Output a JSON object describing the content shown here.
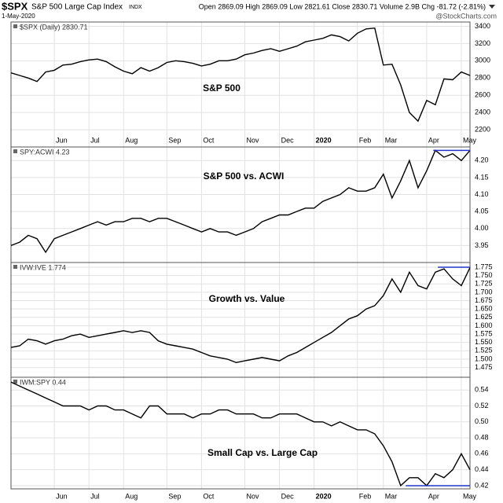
{
  "header": {
    "symbol": "$SPX",
    "name": "S&P 500 Large Cap Index",
    "exchange": "INDX",
    "date": "1-May-2020",
    "quote": "Open 2869.09  High 2869.09  Low 2821.61  Close 2830.71  Volume 2.9B  Chg -81.72 (-2.81%)",
    "credit": "@StockCharts.com"
  },
  "chart_data": [
    {
      "type": "line",
      "label": "$SPX (Daily) 2830.71",
      "title": "S&P 500",
      "color": "#000000",
      "grid": true,
      "categories": [
        null,
        null,
        null,
        null,
        null,
        "Jun",
        null,
        null,
        null,
        "Jul",
        null,
        null,
        null,
        "Aug",
        null,
        null,
        null,
        null,
        "Sep",
        null,
        null,
        null,
        "Oct",
        null,
        null,
        null,
        null,
        "Nov",
        null,
        null,
        null,
        "Dec",
        null,
        null,
        null,
        "2020",
        null,
        null,
        null,
        null,
        "Feb",
        null,
        null,
        "Mar",
        null,
        null,
        null,
        null,
        "Apr",
        null,
        null,
        null,
        "May",
        null
      ],
      "values": [
        2860,
        2830,
        2800,
        2760,
        2870,
        2890,
        2950,
        2960,
        2990,
        3010,
        3020,
        2990,
        2930,
        2880,
        2850,
        2920,
        2880,
        2920,
        2980,
        3000,
        2990,
        2970,
        2940,
        2960,
        3000,
        3000,
        3020,
        3070,
        3090,
        3120,
        3140,
        3110,
        3140,
        3170,
        3220,
        3240,
        3260,
        3300,
        3280,
        3230,
        3320,
        3370,
        3380,
        2950,
        2960,
        2720,
        2400,
        2300,
        2540,
        2490,
        2790,
        2780,
        2870,
        2830
      ],
      "ylim": [
        2000,
        3450
      ],
      "yticks": [
        2200,
        2400,
        2600,
        2800,
        3000,
        3200,
        3400
      ]
    },
    {
      "type": "line",
      "label": "SPY:ACWI 4.23",
      "title": "S&P 500 vs. ACWI",
      "color": "#000000",
      "grid": true,
      "values": [
        3.95,
        3.96,
        3.98,
        3.97,
        3.93,
        3.97,
        3.98,
        3.99,
        4.0,
        4.01,
        4.02,
        4.01,
        4.02,
        4.02,
        4.03,
        4.03,
        4.02,
        4.03,
        4.03,
        4.02,
        4.01,
        4.0,
        3.99,
        4.0,
        3.99,
        3.99,
        3.98,
        3.99,
        4.0,
        4.02,
        4.03,
        4.04,
        4.04,
        4.05,
        4.06,
        4.06,
        4.08,
        4.09,
        4.1,
        4.12,
        4.11,
        4.11,
        4.12,
        4.16,
        4.09,
        4.14,
        4.2,
        4.12,
        4.17,
        4.23,
        4.21,
        4.22,
        4.2,
        4.23
      ],
      "ylim": [
        3.9,
        4.24
      ],
      "yticks": [
        3.95,
        {
          "value": 4.0,
          "label": "4.00"
        },
        4.05,
        {
          "value": 4.1,
          "label": "4.10"
        },
        4.15,
        {
          "value": 4.2,
          "label": "4.20"
        }
      ],
      "hline": {
        "value": 4.23,
        "color": "#2233cc"
      }
    },
    {
      "type": "line",
      "label": "IVW:IVE 1.774",
      "title": "Growth vs. Value",
      "color": "#000000",
      "grid": true,
      "values": [
        1.535,
        1.54,
        1.56,
        1.555,
        1.545,
        1.555,
        1.56,
        1.57,
        1.575,
        1.565,
        1.57,
        1.575,
        1.58,
        1.585,
        1.58,
        1.585,
        1.58,
        1.555,
        1.545,
        1.54,
        1.535,
        1.53,
        1.52,
        1.51,
        1.505,
        1.5,
        1.49,
        1.495,
        1.5,
        1.505,
        1.5,
        1.495,
        1.51,
        1.52,
        1.535,
        1.55,
        1.565,
        1.58,
        1.6,
        1.62,
        1.63,
        1.65,
        1.66,
        1.69,
        1.74,
        1.7,
        1.76,
        1.72,
        1.71,
        1.76,
        1.77,
        1.74,
        1.72,
        1.774
      ],
      "ylim": [
        1.446,
        1.789
      ],
      "yticks": [
        1.475,
        {
          "value": 1.5,
          "label": "1.500"
        },
        1.525,
        {
          "value": 1.55,
          "label": "1.550"
        },
        1.575,
        {
          "value": 1.6,
          "label": "1.600"
        },
        1.625,
        {
          "value": 1.65,
          "label": "1.650"
        },
        1.675,
        {
          "value": 1.7,
          "label": "1.700"
        },
        1.725,
        {
          "value": 1.75,
          "label": "1.750"
        },
        1.775
      ],
      "hline": {
        "value": 1.775,
        "color": "#2233cc"
      }
    },
    {
      "type": "line",
      "label": "IWM:SPY 0.44",
      "title": "Small Cap vs. Large Cap",
      "color": "#000000",
      "grid": true,
      "categories": [
        null,
        null,
        null,
        null,
        null,
        "Jun",
        null,
        null,
        null,
        "Jul",
        null,
        null,
        null,
        "Aug",
        null,
        null,
        null,
        null,
        "Sep",
        null,
        null,
        null,
        "Oct",
        null,
        null,
        null,
        null,
        "Nov",
        null,
        null,
        null,
        "Dec",
        null,
        null,
        null,
        "2020",
        null,
        null,
        null,
        null,
        "Feb",
        null,
        null,
        "Mar",
        null,
        null,
        null,
        null,
        "Apr",
        null,
        null,
        null,
        "May",
        null
      ],
      "values": [
        0.55,
        0.545,
        0.54,
        0.535,
        0.53,
        0.525,
        0.52,
        0.52,
        0.52,
        0.515,
        0.52,
        0.52,
        0.515,
        0.515,
        0.51,
        0.505,
        0.52,
        0.52,
        0.51,
        0.51,
        0.51,
        0.505,
        0.51,
        0.51,
        0.515,
        0.515,
        0.51,
        0.51,
        0.51,
        0.505,
        0.505,
        0.51,
        0.51,
        0.51,
        0.505,
        0.5,
        0.5,
        0.495,
        0.5,
        0.495,
        0.49,
        0.49,
        0.485,
        0.47,
        0.45,
        0.42,
        0.43,
        0.43,
        0.42,
        0.435,
        0.43,
        0.44,
        0.46,
        0.44
      ],
      "ylim": [
        0.416,
        0.556
      ],
      "yticks": [
        0.42,
        0.44,
        0.46,
        0.48,
        {
          "value": 0.5,
          "label": "0.50"
        },
        0.52,
        0.54
      ],
      "hline": {
        "value": 0.42,
        "color": "#2233cc"
      }
    }
  ]
}
